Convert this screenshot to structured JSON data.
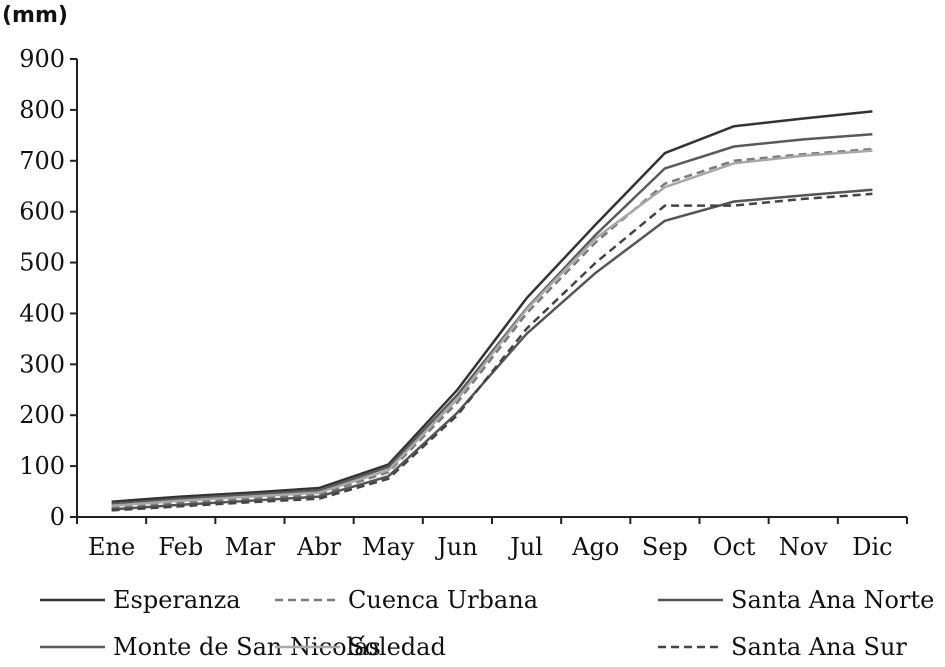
{
  "chart_data": {
    "type": "line",
    "unit_label": "(mm)",
    "categories": [
      "Ene",
      "Feb",
      "Mar",
      "Abr",
      "May",
      "Jun",
      "Jul",
      "Ago",
      "Sep",
      "Oct",
      "Nov",
      "Dic"
    ],
    "ylim": [
      0,
      900
    ],
    "yticks": [
      "0",
      "100",
      "200",
      "300",
      "400",
      "500",
      "600",
      "700",
      "800",
      "900"
    ],
    "grid": false,
    "legend_position": "bottom",
    "series": [
      {
        "name": "Esperanza",
        "color": "#333333",
        "dash": "solid",
        "values": [
          30,
          40,
          48,
          57,
          103,
          250,
          430,
          575,
          715,
          768,
          783,
          797
        ]
      },
      {
        "name": "Monte de San Nicolás",
        "color": "#5a5a5a",
        "dash": "solid",
        "values": [
          25,
          36,
          44,
          52,
          98,
          240,
          410,
          555,
          685,
          728,
          742,
          752
        ]
      },
      {
        "name": "Cuenca Urbana",
        "color": "#7a7a7a",
        "dash": "dashed",
        "values": [
          18,
          28,
          36,
          44,
          88,
          225,
          400,
          540,
          655,
          700,
          713,
          723
        ]
      },
      {
        "name": "Soledad",
        "color": "#a8a8a8",
        "dash": "solid",
        "values": [
          22,
          32,
          40,
          48,
          92,
          232,
          408,
          548,
          648,
          695,
          710,
          720
        ]
      },
      {
        "name": "Santa Ana Norte",
        "color": "#555555",
        "dash": "solid",
        "values": [
          15,
          24,
          32,
          40,
          80,
          205,
          360,
          480,
          582,
          620,
          632,
          643
        ]
      },
      {
        "name": "Santa Ana Sur",
        "color": "#444444",
        "dash": "dashed",
        "values": [
          13,
          21,
          29,
          36,
          75,
          200,
          370,
          500,
          612,
          612,
          625,
          635
        ]
      }
    ]
  }
}
